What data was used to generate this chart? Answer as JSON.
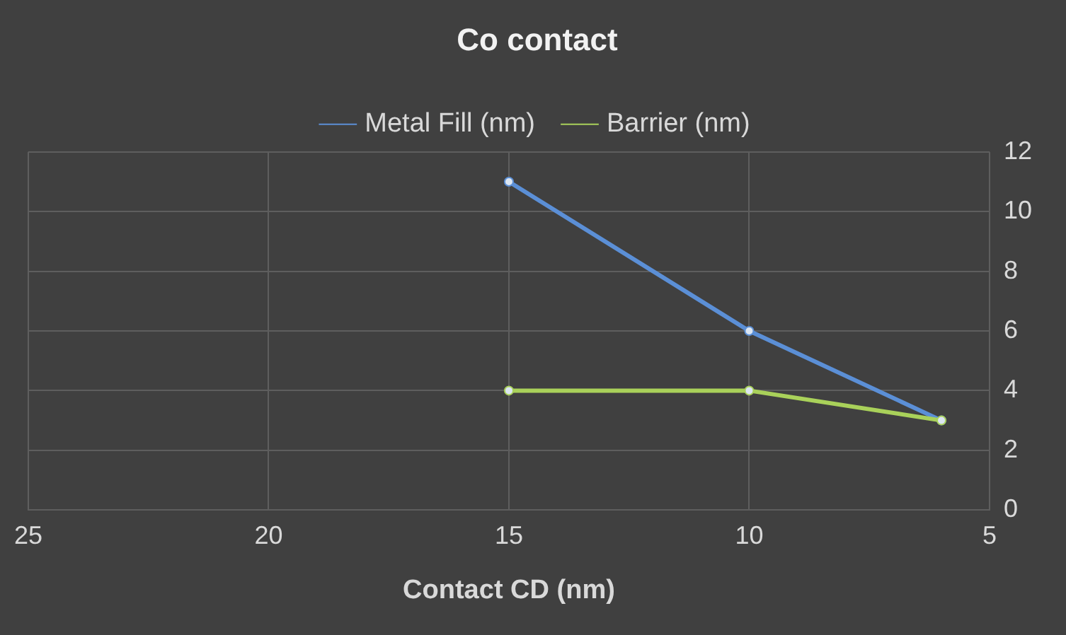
{
  "chart_data": {
    "type": "line",
    "title": "Co contact",
    "xlabel": "Contact CD (nm)",
    "series": [
      {
        "name": "Metal Fill (nm)",
        "color": "#5b8fd6",
        "x": [
          15,
          10,
          6
        ],
        "values": [
          11,
          6,
          3
        ]
      },
      {
        "name": "Barrier (nm)",
        "color": "#a9d15a",
        "x": [
          15,
          10,
          6
        ],
        "values": [
          4,
          4,
          3
        ]
      }
    ],
    "xlim": [
      25,
      5
    ],
    "xticks": [
      25,
      20,
      15,
      10,
      5
    ],
    "ylim": [
      0,
      12
    ],
    "yticks": [
      0,
      2,
      4,
      6,
      8,
      10,
      12
    ],
    "grid": true,
    "legend": "top",
    "marker": "circle",
    "line_style": "solid"
  }
}
